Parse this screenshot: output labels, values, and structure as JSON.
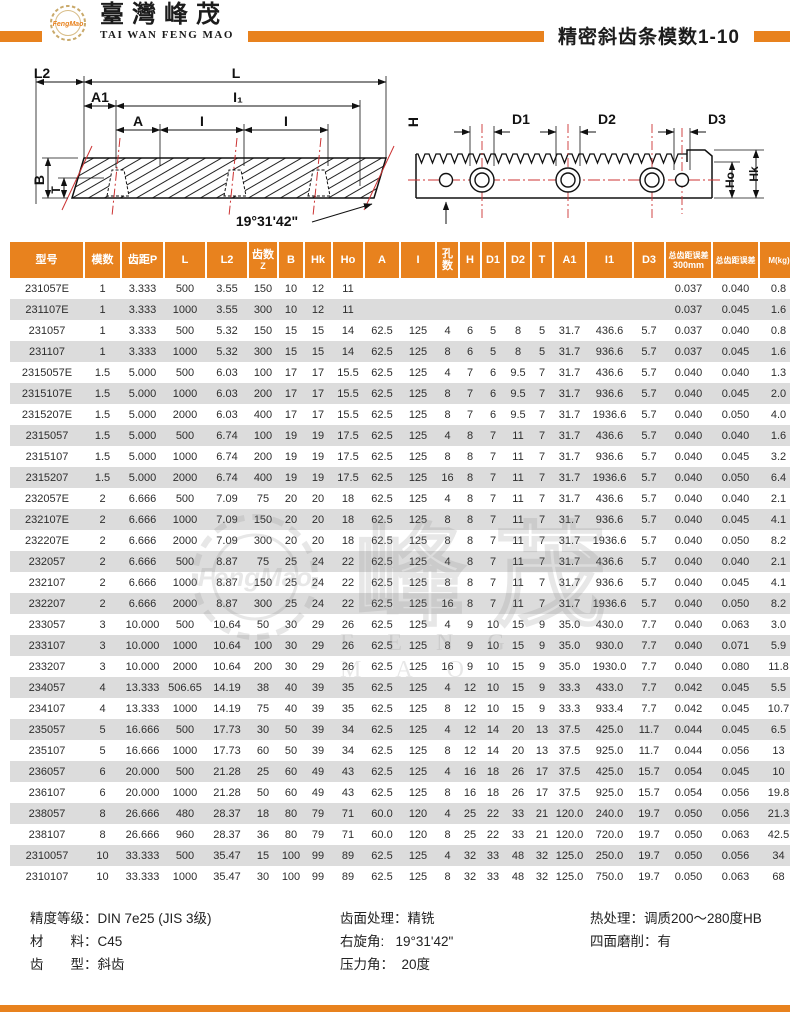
{
  "header": {
    "logo_gear_text": "FengMao",
    "brand_chinese": "臺灣峰茂",
    "brand_english": "TAI WAN FENG MAO",
    "page_title": "精密斜齿条模数1-10",
    "accent_color": "#e8821e"
  },
  "diagram_top": {
    "l2": "L2",
    "l": "L",
    "a1": "A1",
    "i1": "I₁",
    "a": "A",
    "i_mid": "I",
    "i_right": "I",
    "b": "B",
    "t": "T",
    "angle": "19°31'42\""
  },
  "diagram_side": {
    "h": "H",
    "d1": "D1",
    "d2": "D2",
    "d3": "D3",
    "ho": "Ho",
    "hk": "Hk"
  },
  "table": {
    "columns": [
      {
        "label": "型号"
      },
      {
        "label": "模数"
      },
      {
        "label": "齿距P"
      },
      {
        "label": "L"
      },
      {
        "label": "L2"
      },
      {
        "label": "齿数",
        "sub": "Z"
      },
      {
        "label": "B"
      },
      {
        "label": "Hk"
      },
      {
        "label": "Ho"
      },
      {
        "label": "A"
      },
      {
        "label": "I"
      },
      {
        "label": "孔数"
      },
      {
        "label": "H"
      },
      {
        "label": "D1"
      },
      {
        "label": "D2"
      },
      {
        "label": "T"
      },
      {
        "label": "A1"
      },
      {
        "label": "I1"
      },
      {
        "label": "D3"
      },
      {
        "label": "总齿距误差",
        "sub": "300mm"
      },
      {
        "label": "总齿距误差"
      },
      {
        "label": "M(kg)"
      }
    ],
    "rows": [
      [
        "231057E",
        "1",
        "3.333",
        "500",
        "3.55",
        "150",
        "10",
        "12",
        "11",
        "",
        "",
        "",
        "",
        "",
        "",
        "",
        "",
        "",
        "",
        "0.037",
        "0.040",
        "0.8"
      ],
      [
        "231107E",
        "1",
        "3.333",
        "1000",
        "3.55",
        "300",
        "10",
        "12",
        "11",
        "",
        "",
        "",
        "",
        "",
        "",
        "",
        "",
        "",
        "",
        "0.037",
        "0.045",
        "1.6"
      ],
      [
        "231057",
        "1",
        "3.333",
        "500",
        "5.32",
        "150",
        "15",
        "15",
        "14",
        "62.5",
        "125",
        "4",
        "6",
        "5",
        "8",
        "5",
        "31.7",
        "436.6",
        "5.7",
        "0.037",
        "0.040",
        "0.8"
      ],
      [
        "231107",
        "1",
        "3.333",
        "1000",
        "5.32",
        "300",
        "15",
        "15",
        "14",
        "62.5",
        "125",
        "8",
        "6",
        "5",
        "8",
        "5",
        "31.7",
        "936.6",
        "5.7",
        "0.037",
        "0.045",
        "1.6"
      ],
      [
        "2315057E",
        "1.5",
        "5.000",
        "500",
        "6.03",
        "100",
        "17",
        "17",
        "15.5",
        "62.5",
        "125",
        "4",
        "7",
        "6",
        "9.5",
        "7",
        "31.7",
        "436.6",
        "5.7",
        "0.040",
        "0.040",
        "1.3"
      ],
      [
        "2315107E",
        "1.5",
        "5.000",
        "1000",
        "6.03",
        "200",
        "17",
        "17",
        "15.5",
        "62.5",
        "125",
        "8",
        "7",
        "6",
        "9.5",
        "7",
        "31.7",
        "936.6",
        "5.7",
        "0.040",
        "0.045",
        "2.0"
      ],
      [
        "2315207E",
        "1.5",
        "5.000",
        "2000",
        "6.03",
        "400",
        "17",
        "17",
        "15.5",
        "62.5",
        "125",
        "8",
        "7",
        "6",
        "9.5",
        "7",
        "31.7",
        "1936.6",
        "5.7",
        "0.040",
        "0.050",
        "4.0"
      ],
      [
        "2315057",
        "1.5",
        "5.000",
        "500",
        "6.74",
        "100",
        "19",
        "19",
        "17.5",
        "62.5",
        "125",
        "4",
        "8",
        "7",
        "11",
        "7",
        "31.7",
        "436.6",
        "5.7",
        "0.040",
        "0.040",
        "1.6"
      ],
      [
        "2315107",
        "1.5",
        "5.000",
        "1000",
        "6.74",
        "200",
        "19",
        "19",
        "17.5",
        "62.5",
        "125",
        "8",
        "8",
        "7",
        "11",
        "7",
        "31.7",
        "936.6",
        "5.7",
        "0.040",
        "0.045",
        "3.2"
      ],
      [
        "2315207",
        "1.5",
        "5.000",
        "2000",
        "6.74",
        "400",
        "19",
        "19",
        "17.5",
        "62.5",
        "125",
        "16",
        "8",
        "7",
        "11",
        "7",
        "31.7",
        "1936.6",
        "5.7",
        "0.040",
        "0.050",
        "6.4"
      ],
      [
        "232057E",
        "2",
        "6.666",
        "500",
        "7.09",
        "75",
        "20",
        "20",
        "18",
        "62.5",
        "125",
        "4",
        "8",
        "7",
        "11",
        "7",
        "31.7",
        "436.6",
        "5.7",
        "0.040",
        "0.040",
        "2.1"
      ],
      [
        "232107E",
        "2",
        "6.666",
        "1000",
        "7.09",
        "150",
        "20",
        "20",
        "18",
        "62.5",
        "125",
        "8",
        "8",
        "7",
        "11",
        "7",
        "31.7",
        "936.6",
        "5.7",
        "0.040",
        "0.045",
        "4.1"
      ],
      [
        "232207E",
        "2",
        "6.666",
        "2000",
        "7.09",
        "300",
        "20",
        "20",
        "18",
        "62.5",
        "125",
        "8",
        "8",
        "7",
        "11",
        "7",
        "31.7",
        "1936.6",
        "5.7",
        "0.040",
        "0.050",
        "8.2"
      ],
      [
        "232057",
        "2",
        "6.666",
        "500",
        "8.87",
        "75",
        "25",
        "24",
        "22",
        "62.5",
        "125",
        "4",
        "8",
        "7",
        "11",
        "7",
        "31.7",
        "436.6",
        "5.7",
        "0.040",
        "0.040",
        "2.1"
      ],
      [
        "232107",
        "2",
        "6.666",
        "1000",
        "8.87",
        "150",
        "25",
        "24",
        "22",
        "62.5",
        "125",
        "8",
        "8",
        "7",
        "11",
        "7",
        "31.7",
        "936.6",
        "5.7",
        "0.040",
        "0.045",
        "4.1"
      ],
      [
        "232207",
        "2",
        "6.666",
        "2000",
        "8.87",
        "300",
        "25",
        "24",
        "22",
        "62.5",
        "125",
        "16",
        "8",
        "7",
        "11",
        "7",
        "31.7",
        "1936.6",
        "5.7",
        "0.040",
        "0.050",
        "8.2"
      ],
      [
        "233057",
        "3",
        "10.000",
        "500",
        "10.64",
        "50",
        "30",
        "29",
        "26",
        "62.5",
        "125",
        "4",
        "9",
        "10",
        "15",
        "9",
        "35.0",
        "430.0",
        "7.7",
        "0.040",
        "0.063",
        "3.0"
      ],
      [
        "233107",
        "3",
        "10.000",
        "1000",
        "10.64",
        "100",
        "30",
        "29",
        "26",
        "62.5",
        "125",
        "8",
        "9",
        "10",
        "15",
        "9",
        "35.0",
        "930.0",
        "7.7",
        "0.040",
        "0.071",
        "5.9"
      ],
      [
        "233207",
        "3",
        "10.000",
        "2000",
        "10.64",
        "200",
        "30",
        "29",
        "26",
        "62.5",
        "125",
        "16",
        "9",
        "10",
        "15",
        "9",
        "35.0",
        "1930.0",
        "7.7",
        "0.040",
        "0.080",
        "11.8"
      ],
      [
        "234057",
        "4",
        "13.333",
        "506.65",
        "14.19",
        "38",
        "40",
        "39",
        "35",
        "62.5",
        "125",
        "4",
        "12",
        "10",
        "15",
        "9",
        "33.3",
        "433.0",
        "7.7",
        "0.042",
        "0.045",
        "5.5"
      ],
      [
        "234107",
        "4",
        "13.333",
        "1000",
        "14.19",
        "75",
        "40",
        "39",
        "35",
        "62.5",
        "125",
        "8",
        "12",
        "10",
        "15",
        "9",
        "33.3",
        "933.4",
        "7.7",
        "0.042",
        "0.045",
        "10.7"
      ],
      [
        "235057",
        "5",
        "16.666",
        "500",
        "17.73",
        "30",
        "50",
        "39",
        "34",
        "62.5",
        "125",
        "4",
        "12",
        "14",
        "20",
        "13",
        "37.5",
        "425.0",
        "11.7",
        "0.044",
        "0.045",
        "6.5"
      ],
      [
        "235107",
        "5",
        "16.666",
        "1000",
        "17.73",
        "60",
        "50",
        "39",
        "34",
        "62.5",
        "125",
        "8",
        "12",
        "14",
        "20",
        "13",
        "37.5",
        "925.0",
        "11.7",
        "0.044",
        "0.056",
        "13"
      ],
      [
        "236057",
        "6",
        "20.000",
        "500",
        "21.28",
        "25",
        "60",
        "49",
        "43",
        "62.5",
        "125",
        "4",
        "16",
        "18",
        "26",
        "17",
        "37.5",
        "425.0",
        "15.7",
        "0.054",
        "0.045",
        "10"
      ],
      [
        "236107",
        "6",
        "20.000",
        "1000",
        "21.28",
        "50",
        "60",
        "49",
        "43",
        "62.5",
        "125",
        "8",
        "16",
        "18",
        "26",
        "17",
        "37.5",
        "925.0",
        "15.7",
        "0.054",
        "0.056",
        "19.8"
      ],
      [
        "238057",
        "8",
        "26.666",
        "480",
        "28.37",
        "18",
        "80",
        "79",
        "71",
        "60.0",
        "120",
        "4",
        "25",
        "22",
        "33",
        "21",
        "120.0",
        "240.0",
        "19.7",
        "0.050",
        "0.056",
        "21.3"
      ],
      [
        "238107",
        "8",
        "26.666",
        "960",
        "28.37",
        "36",
        "80",
        "79",
        "71",
        "60.0",
        "120",
        "8",
        "25",
        "22",
        "33",
        "21",
        "120.0",
        "720.0",
        "19.7",
        "0.050",
        "0.063",
        "42.5"
      ],
      [
        "2310057",
        "10",
        "33.333",
        "500",
        "35.47",
        "15",
        "100",
        "99",
        "89",
        "62.5",
        "125",
        "4",
        "32",
        "33",
        "48",
        "32",
        "125.0",
        "250.0",
        "19.7",
        "0.050",
        "0.056",
        "34"
      ],
      [
        "2310107",
        "10",
        "33.333",
        "1000",
        "35.47",
        "30",
        "100",
        "99",
        "89",
        "62.5",
        "125",
        "8",
        "32",
        "33",
        "48",
        "32",
        "125.0",
        "750.0",
        "19.7",
        "0.050",
        "0.063",
        "68"
      ]
    ]
  },
  "watermark": {
    "gear_text": "FengMao",
    "cn": "峰茂",
    "en": "FENG MAO"
  },
  "footer": {
    "col1": [
      "精度等级：DIN 7e25 (JIS 3级)",
      "材　　料：C45",
      "齿　　型：斜齿"
    ],
    "col2": [
      "齿面处理：精铣",
      "右旋角:   19°31'42\"",
      "压力角：  20度"
    ],
    "col3": [
      "热处理：调质200～280度HB",
      "四面磨削：有"
    ]
  }
}
